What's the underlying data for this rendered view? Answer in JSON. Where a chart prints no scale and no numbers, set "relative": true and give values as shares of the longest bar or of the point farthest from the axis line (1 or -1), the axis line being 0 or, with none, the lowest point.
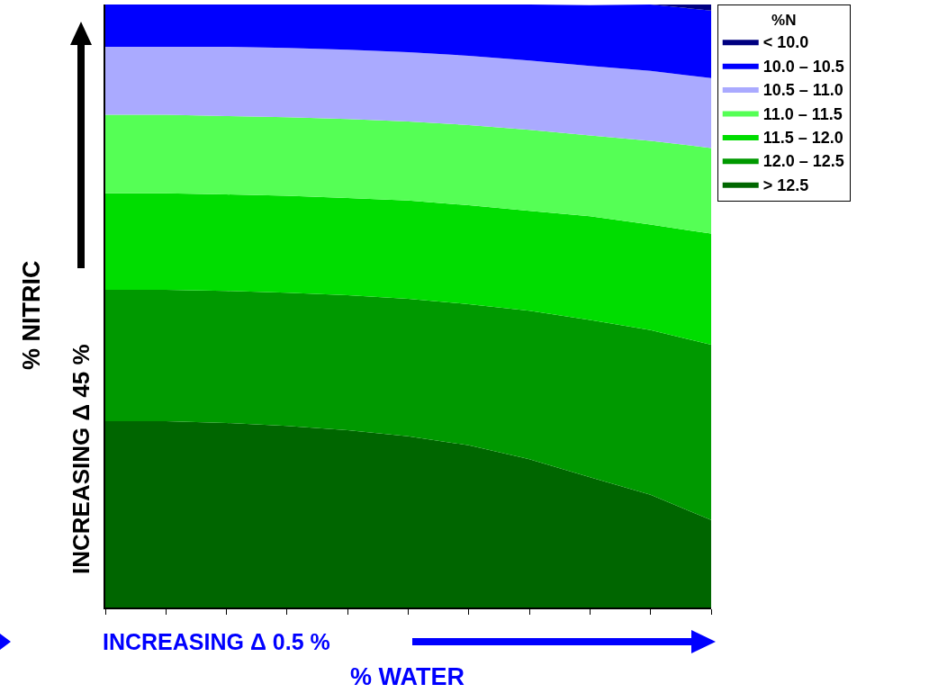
{
  "chart_data": {
    "type": "area",
    "stacked": true,
    "relative": true,
    "xlabel": "% WATER",
    "ylabel": "% NITRIC",
    "legend_title": "%N",
    "legend": "top right",
    "annotations": [
      "INCREASING Δ 45 %",
      "INCREASING Δ 0.5 %"
    ],
    "categories": [
      null,
      null,
      null,
      null,
      null,
      null,
      null,
      null,
      null,
      null,
      null
    ],
    "series": [
      {
        "name": "> 12.5",
        "color": "#006600",
        "values": [
          0.309,
          0.309,
          0.306,
          0.301,
          0.294,
          0.284,
          0.269,
          0.246,
          0.216,
          0.187,
          0.145
        ]
      },
      {
        "name": "12.0 – 12.5",
        "color": "#009900",
        "values": [
          0.218,
          0.218,
          0.219,
          0.221,
          0.224,
          0.228,
          0.234,
          0.246,
          0.261,
          0.273,
          0.291
        ]
      },
      {
        "name": "11.5 – 12.0",
        "color": "#00dd00",
        "values": [
          0.16,
          0.16,
          0.16,
          0.161,
          0.161,
          0.163,
          0.164,
          0.166,
          0.172,
          0.175,
          0.184
        ]
      },
      {
        "name": "11.0 – 11.5",
        "color": "#55ff55",
        "values": [
          0.13,
          0.13,
          0.13,
          0.13,
          0.131,
          0.131,
          0.133,
          0.134,
          0.134,
          0.139,
          0.142
        ]
      },
      {
        "name": "10.5 – 11.0",
        "color": "#aaaaff",
        "values": [
          0.113,
          0.113,
          0.115,
          0.115,
          0.115,
          0.115,
          0.115,
          0.115,
          0.115,
          0.116,
          0.116
        ]
      },
      {
        "name": "10.0 – 10.5",
        "color": "#0000ff",
        "values": [
          0.07,
          0.07,
          0.07,
          0.072,
          0.075,
          0.079,
          0.085,
          0.093,
          0.101,
          0.11,
          0.112
        ]
      },
      {
        "name": "< 10.0",
        "color": "#000080",
        "values": [
          0,
          0,
          0,
          0,
          0,
          0,
          0,
          0,
          0,
          0,
          0.01
        ]
      }
    ]
  }
}
